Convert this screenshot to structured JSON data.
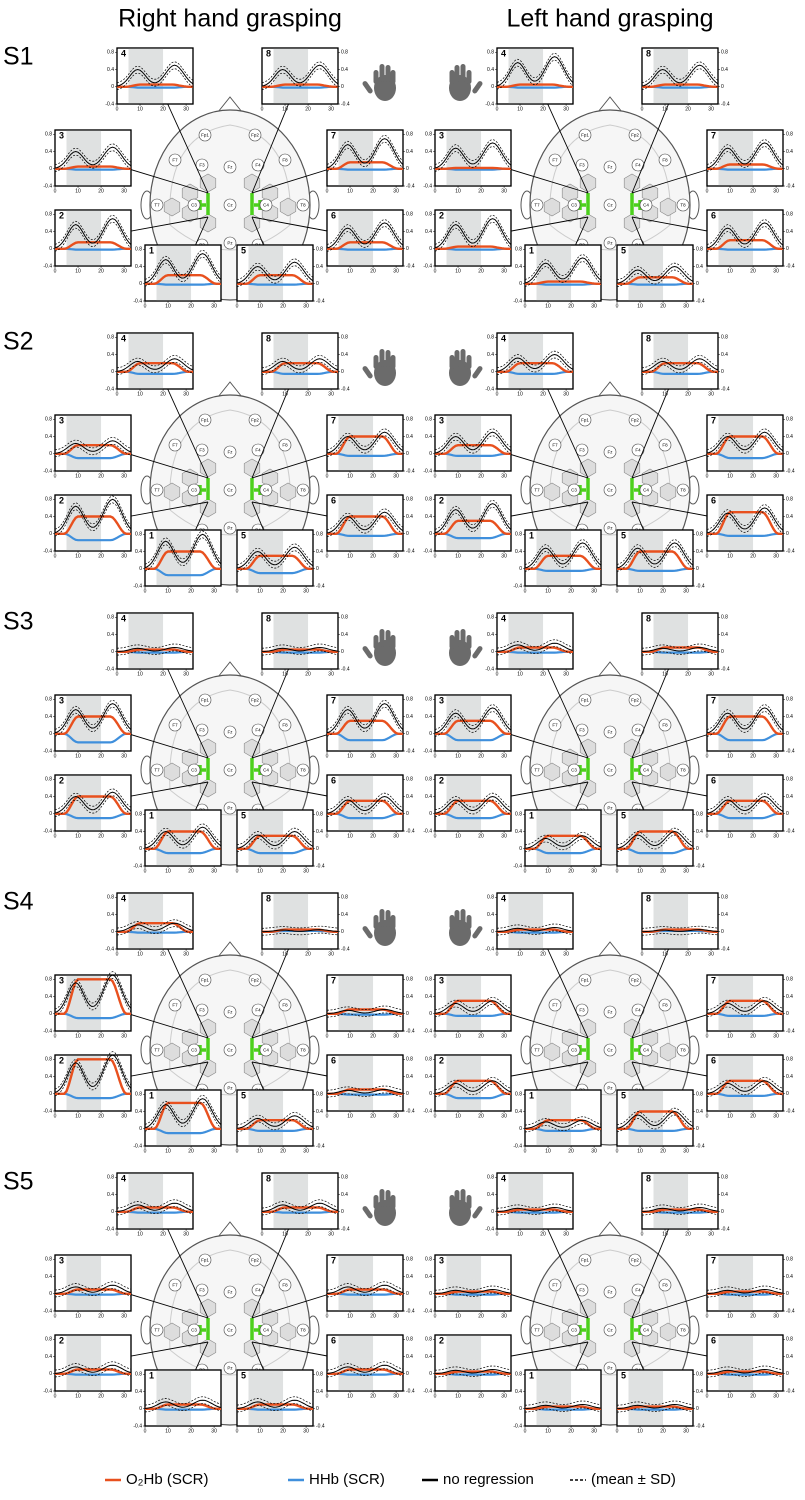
{
  "chart_data": {
    "type": "small-multiples",
    "column_titles": [
      "Right hand grasping",
      "Left hand grasping"
    ],
    "panels": [
      "1",
      "2",
      "3",
      "4",
      "5",
      "6",
      "7",
      "8"
    ],
    "xlim": [
      0,
      33
    ],
    "ylim": [
      -0.4,
      0.9
    ],
    "xticks": [
      0,
      10,
      20,
      30
    ],
    "yticks": [
      -0.4,
      0,
      0.4,
      0.8
    ],
    "stim": [
      5,
      20
    ],
    "electrodes": [
      "Fp1",
      "Fp2",
      "F7",
      "F3",
      "Fz",
      "F4",
      "F8",
      "T7",
      "C3",
      "Cz",
      "C4",
      "T8",
      "P3",
      "Pz",
      "P4"
    ],
    "colors": {
      "o2hb": "#e8501e",
      "hhb": "#3f8fdc",
      "raw": "#000000"
    },
    "legend": [
      "O₂Hb (SCR)",
      "HHb (SCR)",
      "no regression",
      "(mean ± SD)"
    ],
    "subjects": [
      {
        "name": "S1",
        "right": {
          "o2hb": [
            0.2,
            0.15,
            0.05,
            0.05,
            0.2,
            0.15,
            0.15,
            0.05
          ],
          "hhb": [
            -0.02,
            -0.02,
            -0.02,
            -0.02,
            -0.02,
            -0.02,
            -0.02,
            -0.02
          ],
          "raw": [
            0.7,
            0.7,
            0.5,
            0.5,
            0.5,
            0.6,
            0.7,
            0.5
          ]
        },
        "left": {
          "o2hb": [
            0.05,
            0.05,
            0.02,
            0.05,
            0.15,
            0.2,
            0.1,
            0.05
          ],
          "hhb": [
            -0.02,
            -0.02,
            -0.02,
            -0.02,
            -0.02,
            -0.02,
            -0.02,
            -0.02
          ],
          "raw": [
            0.6,
            0.7,
            0.6,
            0.7,
            0.4,
            0.6,
            0.6,
            0.5
          ]
        }
      },
      {
        "name": "S2",
        "right": {
          "o2hb": [
            0.4,
            0.4,
            0.2,
            0.2,
            0.3,
            0.4,
            0.4,
            0.2
          ],
          "hhb": [
            -0.15,
            -0.15,
            -0.1,
            -0.05,
            -0.1,
            -0.05,
            -0.05,
            -0.05
          ],
          "raw": [
            0.8,
            0.8,
            0.3,
            0.3,
            0.5,
            0.5,
            0.5,
            0.3
          ]
        },
        "left": {
          "o2hb": [
            0.3,
            0.3,
            0.2,
            0.2,
            0.4,
            0.5,
            0.4,
            0.2
          ],
          "hhb": [
            -0.05,
            -0.1,
            -0.05,
            -0.05,
            -0.05,
            -0.05,
            -0.1,
            -0.05
          ],
          "raw": [
            0.6,
            0.7,
            0.5,
            0.4,
            0.6,
            0.6,
            0.5,
            0.3
          ]
        }
      },
      {
        "name": "S3",
        "right": {
          "o2hb": [
            0.4,
            0.4,
            0.4,
            0.05,
            0.3,
            0.3,
            0.3,
            0.05
          ],
          "hhb": [
            -0.1,
            -0.1,
            -0.2,
            -0.02,
            -0.1,
            -0.1,
            -0.15,
            -0.02
          ],
          "raw": [
            0.5,
            0.5,
            0.7,
            0.1,
            0.4,
            0.4,
            0.7,
            0.1
          ]
        },
        "left": {
          "o2hb": [
            0.3,
            0.3,
            0.3,
            0.1,
            0.4,
            0.3,
            0.4,
            0.1
          ],
          "hhb": [
            -0.1,
            -0.1,
            -0.15,
            -0.02,
            -0.1,
            -0.1,
            -0.15,
            -0.02
          ],
          "raw": [
            0.3,
            0.4,
            0.6,
            0.2,
            0.4,
            0.4,
            0.6,
            0.1
          ]
        }
      },
      {
        "name": "S4",
        "right": {
          "o2hb": [
            0.6,
            0.8,
            0.8,
            0.2,
            0.2,
            0.1,
            0.1,
            0.05
          ],
          "hhb": [
            -0.1,
            -0.1,
            -0.1,
            -0.02,
            -0.05,
            -0.02,
            -0.02,
            0.02
          ],
          "raw": [
            0.7,
            0.9,
            0.9,
            0.2,
            0.3,
            0.1,
            0.1,
            0.05
          ]
        },
        "left": {
          "o2hb": [
            0.2,
            0.3,
            0.3,
            0.05,
            0.4,
            0.3,
            0.3,
            0.05
          ],
          "hhb": [
            -0.05,
            -0.1,
            -0.05,
            -0.02,
            -0.05,
            -0.05,
            -0.05,
            0.02
          ],
          "raw": [
            0.2,
            0.3,
            0.3,
            0.1,
            0.4,
            0.3,
            0.3,
            0.05
          ]
        }
      },
      {
        "name": "S5",
        "right": {
          "o2hb": [
            0.1,
            0.1,
            0.1,
            0.1,
            0.1,
            0.1,
            0.1,
            0.1
          ],
          "hhb": [
            -0.02,
            -0.02,
            -0.02,
            -0.02,
            -0.02,
            -0.02,
            -0.02,
            -0.02
          ],
          "raw": [
            0.2,
            0.2,
            0.2,
            0.2,
            0.2,
            0.2,
            0.2,
            0.2
          ]
        },
        "left": {
          "o2hb": [
            0.05,
            0.05,
            0.05,
            0.05,
            0.05,
            0.05,
            0.05,
            0.05
          ],
          "hhb": [
            -0.02,
            -0.02,
            -0.02,
            -0.02,
            -0.02,
            -0.02,
            -0.02,
            -0.02
          ],
          "raw": [
            0.1,
            0.1,
            0.1,
            0.1,
            0.1,
            0.1,
            0.1,
            0.1
          ]
        }
      }
    ]
  }
}
